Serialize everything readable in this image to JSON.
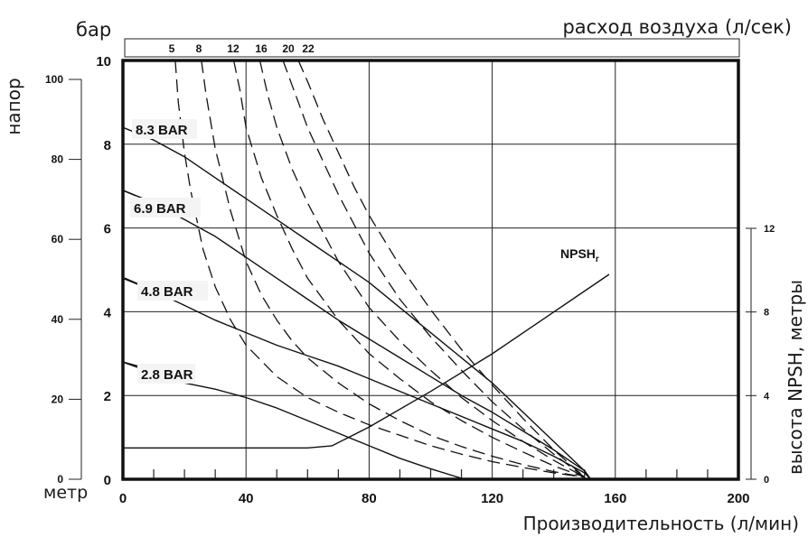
{
  "chart_data": {
    "type": "line",
    "title": "",
    "xlabel": "Производительность (л/мин)",
    "x_ticks": [
      "0",
      "40",
      "80",
      "120",
      "160",
      "200"
    ],
    "xlim": [
      0,
      200
    ],
    "left_bar_label": "бар",
    "left_bar_ticks": [
      "0",
      "2",
      "4",
      "6",
      "8",
      "10"
    ],
    "ylim_bar": [
      0,
      10
    ],
    "left_head_label": "напор",
    "left_head_unit": "метр",
    "left_head_ticks": [
      "0",
      "20",
      "40",
      "60",
      "80",
      "100"
    ],
    "right_label": "высота NPSH, метры",
    "right_ticks": [
      "0",
      "4",
      "8",
      "12"
    ],
    "right_lim": [
      0,
      12
    ],
    "top_label": "расход воздуха (л/сек)",
    "air_labels": [
      "5",
      "8",
      "12",
      "16",
      "20",
      "22"
    ],
    "grid": true,
    "series": [
      {
        "name": "8.3 BAR",
        "style": "solid",
        "x": [
          0,
          10,
          20,
          30,
          40,
          50,
          60,
          70,
          80,
          90,
          100,
          110,
          120,
          130,
          140,
          150,
          152
        ],
        "y": [
          8.4,
          8.1,
          7.7,
          7.2,
          6.7,
          6.2,
          5.7,
          5.2,
          4.7,
          4.1,
          3.5,
          2.9,
          2.3,
          1.6,
          0.9,
          0.2,
          0
        ]
      },
      {
        "name": "6.9 BAR",
        "style": "solid",
        "x": [
          0,
          10,
          20,
          30,
          40,
          50,
          60,
          70,
          80,
          90,
          100,
          110,
          120,
          130,
          140,
          150,
          152
        ],
        "y": [
          6.9,
          6.6,
          6.2,
          5.8,
          5.3,
          4.8,
          4.3,
          3.8,
          3.35,
          2.9,
          2.45,
          2.0,
          1.6,
          1.15,
          0.7,
          0.2,
          0
        ]
      },
      {
        "name": "4.8 BAR",
        "style": "solid",
        "x": [
          0,
          10,
          20,
          30,
          40,
          50,
          60,
          70,
          80,
          90,
          100,
          110,
          120,
          130,
          140,
          150,
          152
        ],
        "y": [
          4.8,
          4.5,
          4.15,
          3.8,
          3.5,
          3.2,
          2.95,
          2.7,
          2.4,
          2.1,
          1.8,
          1.5,
          1.2,
          0.9,
          0.55,
          0.15,
          0
        ]
      },
      {
        "name": "2.8 BAR",
        "style": "solid",
        "x": [
          0,
          10,
          20,
          30,
          40,
          50,
          60,
          70,
          80,
          90,
          100,
          111
        ],
        "y": [
          2.8,
          2.6,
          2.3,
          2.15,
          1.95,
          1.7,
          1.4,
          1.1,
          0.8,
          0.5,
          0.25,
          0
        ]
      },
      {
        "name": "NPSHr",
        "style": "solid",
        "axis": "right",
        "x": [
          0,
          10,
          20,
          30,
          40,
          50,
          60,
          68,
          80,
          100,
          120,
          140,
          158
        ],
        "y": [
          1.5,
          1.5,
          1.5,
          1.5,
          1.5,
          1.5,
          1.5,
          1.6,
          2.5,
          4.2,
          6.0,
          8.0,
          9.8
        ]
      },
      {
        "name": "5",
        "style": "dashed",
        "x": [
          17,
          18,
          20,
          22,
          24,
          26,
          30,
          35,
          40,
          50,
          60,
          70,
          80,
          90,
          100,
          110,
          120,
          130,
          140,
          150
        ],
        "y": [
          10,
          9.0,
          7.8,
          6.9,
          6.2,
          5.5,
          4.6,
          3.8,
          3.2,
          2.45,
          1.95,
          1.6,
          1.3,
          1.05,
          0.8,
          0.6,
          0.42,
          0.28,
          0.15,
          0.05
        ]
      },
      {
        "name": "8",
        "style": "dashed",
        "x": [
          25.5,
          27,
          30,
          35,
          40,
          45,
          50,
          55,
          60,
          70,
          80,
          90,
          100,
          110,
          120,
          130,
          140,
          150
        ],
        "y": [
          10,
          9.2,
          7.9,
          6.4,
          5.2,
          4.4,
          3.8,
          3.3,
          2.9,
          2.3,
          1.8,
          1.4,
          1.05,
          0.78,
          0.55,
          0.35,
          0.18,
          0.05
        ]
      },
      {
        "name": "12",
        "style": "dashed",
        "x": [
          36,
          38,
          40,
          45,
          50,
          55,
          60,
          70,
          80,
          90,
          100,
          110,
          120,
          130,
          140,
          150
        ],
        "y": [
          10,
          9.3,
          8.4,
          7.2,
          6.3,
          5.5,
          4.8,
          3.8,
          3.0,
          2.4,
          1.85,
          1.4,
          1.0,
          0.65,
          0.32,
          0.05
        ]
      },
      {
        "name": "16",
        "style": "dashed",
        "x": [
          44.5,
          47,
          50,
          55,
          60,
          65,
          70,
          80,
          90,
          100,
          110,
          120,
          130,
          140,
          150
        ],
        "y": [
          10,
          9.2,
          8.4,
          7.4,
          6.6,
          5.9,
          5.2,
          4.1,
          3.3,
          2.6,
          1.95,
          1.4,
          0.9,
          0.45,
          0.05
        ]
      },
      {
        "name": "20",
        "style": "dashed",
        "x": [
          52,
          55,
          60,
          65,
          70,
          75,
          80,
          90,
          100,
          110,
          120,
          130,
          140,
          150
        ],
        "y": [
          10,
          9.4,
          8.4,
          7.6,
          6.8,
          6.1,
          5.4,
          4.3,
          3.4,
          2.6,
          1.85,
          1.2,
          0.6,
          0.05
        ]
      },
      {
        "name": "22",
        "style": "dashed",
        "x": [
          57,
          60,
          65,
          70,
          75,
          80,
          85,
          90,
          100,
          110,
          120,
          130,
          140,
          150
        ],
        "y": [
          10,
          9.5,
          8.6,
          7.8,
          7.0,
          6.3,
          5.7,
          5.1,
          4.05,
          3.1,
          2.25,
          1.45,
          0.7,
          0.05
        ]
      }
    ]
  }
}
